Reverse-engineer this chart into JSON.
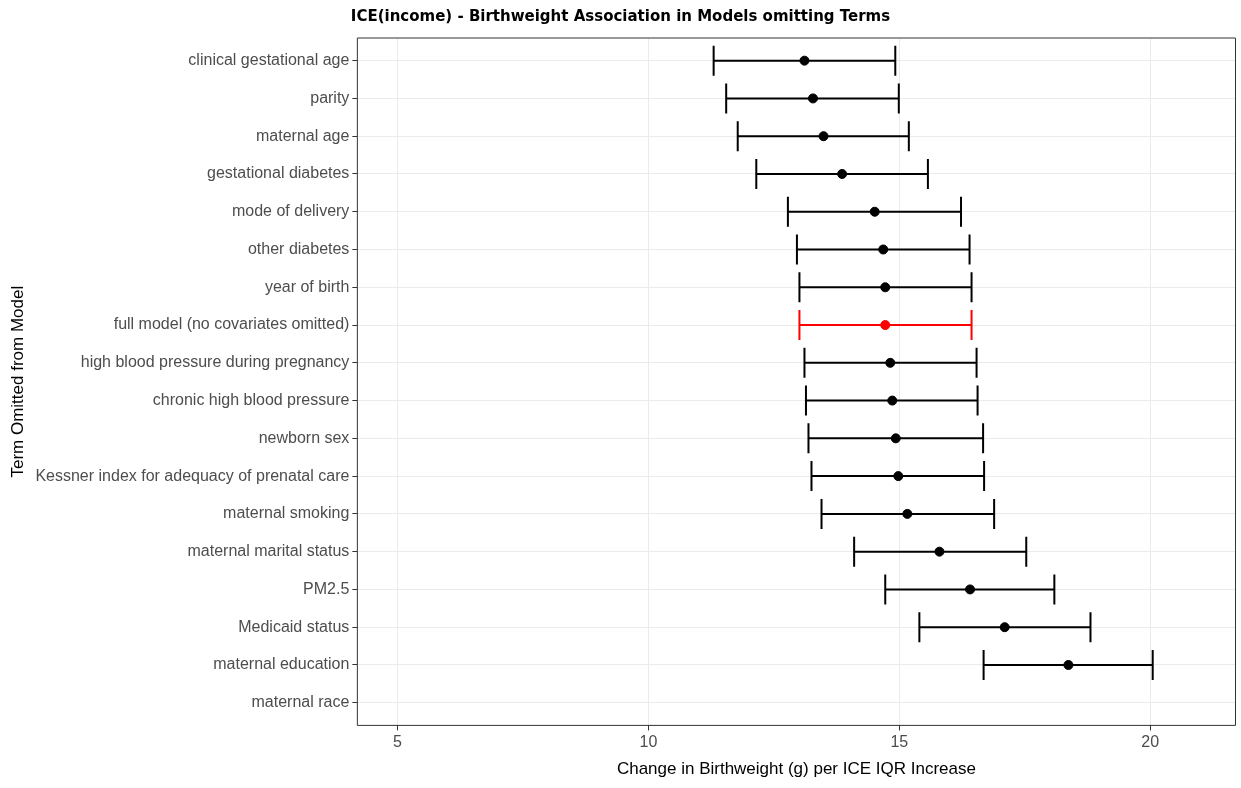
{
  "chart_data": {
    "type": "scatter",
    "orientation": "horizontal",
    "title": "ICE(income) - Birthweight Association in Models omitting Terms",
    "xlabel": "Change in Birthweight (g) per ICE IQR Increase",
    "ylabel": "Term Omitted from Model",
    "categories": [
      "clinical gestational age",
      "parity",
      "maternal age",
      "gestational diabetes",
      "mode of delivery",
      "other diabetes",
      "year of birth",
      "full model (no covariates omitted)",
      "high blood pressure during pregnancy",
      "chronic high blood pressure",
      "newborn sex",
      "Kessner index for adequacy of prenatal care",
      "maternal smoking",
      "maternal marital status",
      "PM2.5",
      "Medicaid status",
      "maternal education",
      "maternal race"
    ],
    "values": [
      13.11,
      13.28,
      13.49,
      13.86,
      14.51,
      14.68,
      14.72,
      14.72,
      14.82,
      14.86,
      14.93,
      14.98,
      15.16,
      15.8,
      16.41,
      17.1,
      18.37,
      null
    ],
    "errors": [
      [
        11.3,
        14.92
      ],
      [
        11.55,
        14.99
      ],
      [
        11.78,
        15.19
      ],
      [
        12.15,
        15.57
      ],
      [
        12.78,
        16.23
      ],
      [
        12.96,
        16.4
      ],
      [
        13.01,
        16.44
      ],
      [
        13.01,
        16.44
      ],
      [
        13.11,
        16.54
      ],
      [
        13.14,
        16.56
      ],
      [
        13.19,
        16.67
      ],
      [
        13.25,
        16.69
      ],
      [
        13.45,
        16.89
      ],
      [
        14.1,
        17.53
      ],
      [
        14.72,
        18.09
      ],
      [
        15.4,
        18.81
      ],
      [
        16.68,
        20.05
      ],
      null
    ],
    "colors": [
      "#000000",
      "#000000",
      "#000000",
      "#000000",
      "#000000",
      "#000000",
      "#000000",
      "#ff0000",
      "#000000",
      "#000000",
      "#000000",
      "#000000",
      "#000000",
      "#000000",
      "#000000",
      "#000000",
      "#000000",
      "#000000"
    ],
    "xlim": [
      4.2,
      21.7
    ],
    "xticks": [
      5,
      10,
      15,
      20
    ],
    "grid": true,
    "legend": false,
    "marker": "circle"
  }
}
